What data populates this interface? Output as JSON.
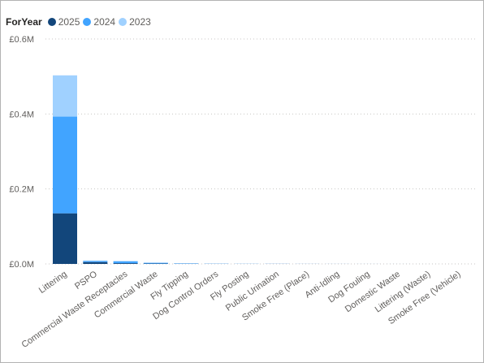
{
  "chart_data": {
    "type": "bar",
    "stacked": true,
    "legend_title": "ForYear",
    "legend_position": "top-left",
    "grid": true,
    "categories": [
      "Littering",
      "PSPO",
      "Commercial Waste Receptacles",
      "Commercial Waste",
      "Fly Tipping",
      "Dog Control Orders",
      "Fly Posting",
      "Public Urination",
      "Smoke Free (Place)",
      "Anti-Idling",
      "Dog Fouling",
      "Domestic Waste",
      "Littering (Waste)",
      "Smoke Free (Vehicle)"
    ],
    "series": [
      {
        "name": "2025",
        "color": "#12467b",
        "values": [
          135000,
          5000,
          2000,
          1000,
          500,
          300,
          100,
          200,
          100,
          50,
          30,
          20,
          10,
          10
        ]
      },
      {
        "name": "2024",
        "color": "#41a4ff",
        "values": [
          258000,
          3000,
          5000,
          2000,
          1000,
          500,
          300,
          200,
          100,
          80,
          50,
          30,
          20,
          10
        ]
      },
      {
        "name": "2023",
        "color": "#a0d1ff",
        "values": [
          110000,
          1000,
          1000,
          500,
          300,
          200,
          100,
          100,
          100,
          50,
          30,
          20,
          10,
          10
        ]
      }
    ],
    "yticks": [
      "£0.0M",
      "£0.2M",
      "£0.4M",
      "£0.6M"
    ],
    "ylim": [
      0,
      600000
    ]
  }
}
